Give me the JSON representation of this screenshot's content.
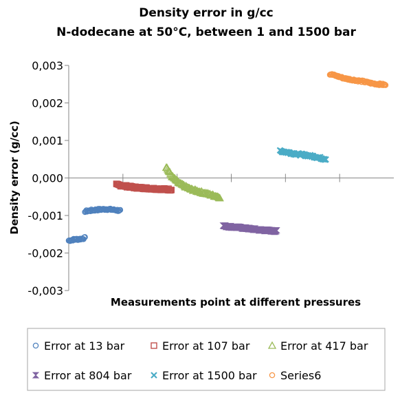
{
  "chart_data": {
    "type": "scatter",
    "title": "Density error in g/cc",
    "subtitle": "N-dodecane at 50°C, between 1 and 1500 bar",
    "xlabel": "Measurements point at different pressures",
    "ylabel": "Density error (g/cc)",
    "ylim": [
      -0.003,
      0.003
    ],
    "yticks": [
      "0,003",
      "0,002",
      "0,001",
      "0,000",
      "-0,001",
      "-0,002",
      "-0,003"
    ],
    "ytick_values": [
      0.003,
      0.002,
      0.001,
      0.0,
      -0.001,
      -0.002,
      -0.003
    ],
    "xlim": [
      0,
      600
    ],
    "x_category_boundaries": [
      100,
      200,
      300,
      400,
      500
    ],
    "grid": false,
    "legend_position": "bottom",
    "series": [
      {
        "name": "Error at 13 bar",
        "marker": "circle",
        "color": "#4f81bd",
        "segments": [
          {
            "x_range": [
              0,
              30
            ],
            "y_points": [
              [
                0,
                -0.00167
              ],
              [
                10,
                -0.00164
              ],
              [
                20,
                -0.00163
              ],
              [
                30,
                -0.0016
              ]
            ]
          },
          {
            "x_range": [
              30,
              95
            ],
            "y_points": [
              [
                30,
                -0.00089
              ],
              [
                50,
                -0.00085
              ],
              [
                70,
                -0.00083
              ],
              [
                95,
                -0.00087
              ]
            ]
          }
        ]
      },
      {
        "name": "Error at 107 bar",
        "marker": "square",
        "color": "#c0504d",
        "segments": [
          {
            "x_range": [
              88,
              190
            ],
            "y_points": [
              [
                88,
                -0.00018
              ],
              [
                120,
                -0.00025
              ],
              [
                150,
                -0.00028
              ],
              [
                190,
                -0.00031
              ]
            ]
          }
        ]
      },
      {
        "name": "Error at 417 bar",
        "marker": "triangle",
        "color": "#9bbb59",
        "segments": [
          {
            "x_range": [
              180,
              280
            ],
            "y_points": [
              [
                180,
                0.0003
              ],
              [
                190,
                5e-05
              ],
              [
                205,
                -0.00015
              ],
              [
                225,
                -0.0003
              ],
              [
                250,
                -0.0004
              ],
              [
                280,
                -0.00052
              ]
            ]
          }
        ]
      },
      {
        "name": "Error at 804 bar",
        "marker": "bowtie",
        "color": "#8064a2",
        "segments": [
          {
            "x_range": [
              285,
              385
            ],
            "y_points": [
              [
                285,
                -0.00128
              ],
              [
                320,
                -0.00133
              ],
              [
                350,
                -0.00138
              ],
              [
                385,
                -0.00142
              ]
            ]
          }
        ]
      },
      {
        "name": "Error at 1500 bar",
        "marker": "x",
        "color": "#4bacc6",
        "segments": [
          {
            "x_range": [
              390,
              475
            ],
            "y_points": [
              [
                390,
                0.00072
              ],
              [
                420,
                0.00064
              ],
              [
                450,
                0.00058
              ],
              [
                475,
                0.0005
              ]
            ]
          }
        ]
      },
      {
        "name": "Series6",
        "marker": "circle",
        "color": "#f79646",
        "segments": [
          {
            "x_range": [
              482,
              585
            ],
            "y_points": [
              [
                482,
                0.00277
              ],
              [
                510,
                0.00265
              ],
              [
                540,
                0.00258
              ],
              [
                560,
                0.00252
              ],
              [
                585,
                0.00248
              ]
            ]
          }
        ]
      }
    ]
  }
}
